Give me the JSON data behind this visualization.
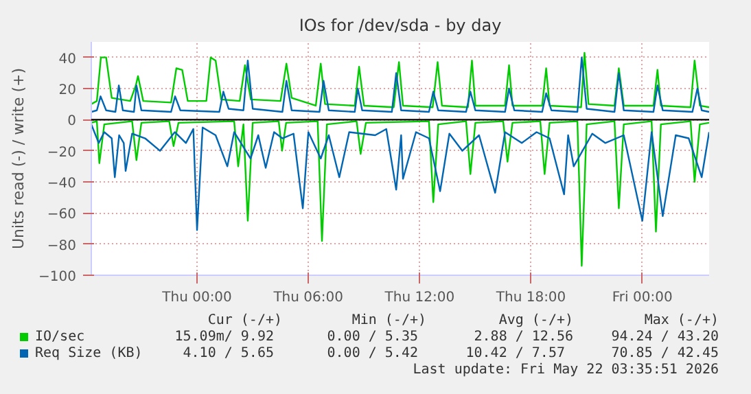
{
  "chart_data": {
    "type": "line",
    "title": "IOs for /dev/sda - by day",
    "ylabel": "Units read (-) / write (+)",
    "xlim": [
      "2026-05-20T18:18",
      "2026-05-22T03:36"
    ],
    "xticks": [
      {
        "value": "2026-05-21T00:00",
        "label": "Thu 00:00"
      },
      {
        "value": "2026-05-21T06:00",
        "label": "Thu 06:00"
      },
      {
        "value": "2026-05-21T12:00",
        "label": "Thu 12:00"
      },
      {
        "value": "2026-05-21T18:00",
        "label": "Thu 18:00"
      },
      {
        "value": "2026-05-22T00:00",
        "label": "Fri 00:00"
      }
    ],
    "ylim": [
      -100,
      50
    ],
    "yticks": [
      -100,
      -80,
      -60,
      -40,
      -20,
      0,
      20,
      40
    ],
    "grid": true,
    "legend": "bottom",
    "marker": "none",
    "line_style": "solid",
    "ref_lines": [
      {
        "axis": "y",
        "value": 0,
        "color": "#000000"
      }
    ],
    "series": [
      {
        "name": "IO/sec",
        "color": "#00cc00",
        "x": [
          "2026-05-20T18:18",
          "2026-05-20T18:36",
          "2026-05-20T18:49",
          "2026-05-20T19:06",
          "2026-05-20T19:24",
          "2026-05-20T20:24",
          "2026-05-20T20:42",
          "2026-05-20T20:49",
          "2026-05-20T21:06",
          "2026-05-20T22:36",
          "2026-05-20T22:53",
          "2026-05-20T23:12",
          "2026-05-20T23:30",
          "2026-05-21T00:30",
          "2026-05-21T00:44",
          "2026-05-21T01:00",
          "2026-05-21T01:18",
          "2026-05-21T02:18",
          "2026-05-21T02:35",
          "2026-05-21T02:54",
          "2026-05-21T04:30",
          "2026-05-21T04:49",
          "2026-05-21T05:06",
          "2026-05-21T06:24",
          "2026-05-21T06:40",
          "2026-05-21T06:54",
          "2026-05-21T08:30",
          "2026-05-21T08:44",
          "2026-05-21T09:00",
          "2026-05-21T10:36",
          "2026-05-21T10:53",
          "2026-05-21T11:06",
          "2026-05-21T12:42",
          "2026-05-21T12:58",
          "2026-05-21T13:12",
          "2026-05-21T14:36",
          "2026-05-21T14:49",
          "2026-05-21T15:00",
          "2026-05-21T16:36",
          "2026-05-21T16:49",
          "2026-05-21T17:00",
          "2026-05-21T18:36",
          "2026-05-21T18:49",
          "2026-05-21T19:00",
          "2026-05-21T20:42",
          "2026-05-21T20:53",
          "2026-05-21T21:06",
          "2026-05-21T22:30",
          "2026-05-21T22:44",
          "2026-05-21T23:00",
          "2026-05-22T00:36",
          "2026-05-22T00:49",
          "2026-05-22T01:00",
          "2026-05-22T02:36",
          "2026-05-22T02:49",
          "2026-05-22T03:06",
          "2026-05-22T03:36"
        ],
        "values": [
          10,
          12,
          40,
          40,
          14,
          12,
          22,
          28,
          12,
          11,
          33,
          32,
          12,
          12,
          40,
          38,
          13,
          12,
          35,
          13,
          12,
          36,
          14,
          9,
          36,
          10,
          9,
          34,
          9,
          8,
          37,
          9,
          8,
          37,
          9,
          8,
          38,
          9,
          9,
          35,
          9,
          9,
          33,
          9,
          8,
          43,
          10,
          9,
          33,
          9,
          9,
          32,
          9,
          8,
          38,
          9,
          8
        ]
      },
      {
        "name": null,
        "color": "#00cc00",
        "x": [
          "2026-05-20T18:18",
          "2026-05-20T18:36",
          "2026-05-20T18:44",
          "2026-05-20T19:00",
          "2026-05-20T20:30",
          "2026-05-20T20:44",
          "2026-05-20T21:00",
          "2026-05-20T22:30",
          "2026-05-20T22:44",
          "2026-05-20T23:00",
          "2026-05-21T02:00",
          "2026-05-21T02:13",
          "2026-05-21T02:30",
          "2026-05-21T02:44",
          "2026-05-21T03:00",
          "2026-05-21T04:24",
          "2026-05-21T04:35",
          "2026-05-21T04:48",
          "2026-05-21T06:30",
          "2026-05-21T06:44",
          "2026-05-21T07:00",
          "2026-05-21T08:36",
          "2026-05-21T08:49",
          "2026-05-21T09:06",
          "2026-05-21T12:30",
          "2026-05-21T12:44",
          "2026-05-21T13:00",
          "2026-05-21T14:30",
          "2026-05-21T14:44",
          "2026-05-21T15:00",
          "2026-05-21T16:30",
          "2026-05-21T16:44",
          "2026-05-21T17:00",
          "2026-05-21T18:30",
          "2026-05-21T18:44",
          "2026-05-21T19:00",
          "2026-05-21T20:30",
          "2026-05-21T20:44",
          "2026-05-21T21:00",
          "2026-05-21T22:30",
          "2026-05-21T22:44",
          "2026-05-21T23:00",
          "2026-05-22T00:30",
          "2026-05-22T00:44",
          "2026-05-22T01:00",
          "2026-05-22T02:36",
          "2026-05-22T02:49",
          "2026-05-22T03:06",
          "2026-05-22T03:36"
        ],
        "values": [
          -2,
          -1,
          -28,
          -3,
          -1,
          -26,
          -2,
          -1,
          -17,
          -2,
          -1,
          -30,
          -3,
          -65,
          -2,
          -1,
          -20,
          -2,
          -1,
          -78,
          -3,
          -1,
          -22,
          -2,
          -1,
          -53,
          -3,
          -1,
          -35,
          -2,
          -1,
          -27,
          -2,
          -1,
          -35,
          -2,
          -1,
          -94,
          -3,
          -1,
          -57,
          -3,
          -1,
          -72,
          -3,
          -1,
          -40,
          -3,
          -2
        ]
      },
      {
        "name": "Req Size (KB)",
        "color": "#0066b3",
        "x": [
          "2026-05-20T18:18",
          "2026-05-20T18:36",
          "2026-05-20T18:48",
          "2026-05-20T19:06",
          "2026-05-20T19:36",
          "2026-05-20T19:47",
          "2026-05-20T20:00",
          "2026-05-20T20:36",
          "2026-05-20T20:44",
          "2026-05-20T21:00",
          "2026-05-20T22:36",
          "2026-05-20T22:49",
          "2026-05-20T23:06",
          "2026-05-21T01:12",
          "2026-05-21T01:25",
          "2026-05-21T01:42",
          "2026-05-21T02:30",
          "2026-05-21T02:44",
          "2026-05-21T03:00",
          "2026-05-21T04:36",
          "2026-05-21T04:49",
          "2026-05-21T05:06",
          "2026-05-21T06:36",
          "2026-05-21T06:49",
          "2026-05-21T07:06",
          "2026-05-21T08:30",
          "2026-05-21T08:40",
          "2026-05-21T08:54",
          "2026-05-21T10:30",
          "2026-05-21T10:44",
          "2026-05-21T11:00",
          "2026-05-21T12:30",
          "2026-05-21T12:44",
          "2026-05-21T13:00",
          "2026-05-21T14:30",
          "2026-05-21T14:44",
          "2026-05-21T15:00",
          "2026-05-21T16:36",
          "2026-05-21T16:49",
          "2026-05-21T17:06",
          "2026-05-21T18:36",
          "2026-05-21T18:49",
          "2026-05-21T19:06",
          "2026-05-21T20:30",
          "2026-05-21T20:44",
          "2026-05-21T21:00",
          "2026-05-21T22:30",
          "2026-05-21T22:44",
          "2026-05-21T23:00",
          "2026-05-22T00:36",
          "2026-05-22T00:49",
          "2026-05-22T01:06",
          "2026-05-22T02:42",
          "2026-05-22T02:58",
          "2026-05-22T03:12",
          "2026-05-22T03:36"
        ],
        "values": [
          5,
          6,
          15,
          6,
          5,
          22,
          6,
          5,
          22,
          6,
          5,
          15,
          6,
          5,
          18,
          7,
          6,
          38,
          7,
          5,
          25,
          6,
          5,
          25,
          6,
          5,
          20,
          6,
          5,
          30,
          6,
          5,
          18,
          6,
          5,
          18,
          6,
          5,
          20,
          6,
          5,
          17,
          6,
          5,
          40,
          7,
          5,
          30,
          6,
          5,
          22,
          6,
          5,
          20,
          6,
          5
        ]
      },
      {
        "name": null,
        "color": "#0066b3",
        "x": [
          "2026-05-20T18:18",
          "2026-05-20T18:42",
          "2026-05-20T19:00",
          "2026-05-20T19:24",
          "2026-05-20T19:34",
          "2026-05-20T19:48",
          "2026-05-20T20:03",
          "2026-05-20T20:09",
          "2026-05-20T20:30",
          "2026-05-20T21:12",
          "2026-05-20T22:00",
          "2026-05-20T22:48",
          "2026-05-20T23:24",
          "2026-05-20T23:48",
          "2026-05-21T00:00",
          "2026-05-21T00:18",
          "2026-05-21T01:00",
          "2026-05-21T01:38",
          "2026-05-21T02:00",
          "2026-05-21T02:53",
          "2026-05-21T03:18",
          "2026-05-21T03:42",
          "2026-05-21T04:09",
          "2026-05-21T04:36",
          "2026-05-21T05:12",
          "2026-05-21T05:42",
          "2026-05-21T06:00",
          "2026-05-21T06:40",
          "2026-05-21T07:06",
          "2026-05-21T07:40",
          "2026-05-21T08:12",
          "2026-05-21T09:36",
          "2026-05-21T10:12",
          "2026-05-21T10:44",
          "2026-05-21T11:00",
          "2026-05-21T11:06",
          "2026-05-21T11:48",
          "2026-05-21T12:30",
          "2026-05-21T13:06",
          "2026-05-21T13:36",
          "2026-05-21T14:18",
          "2026-05-21T15:12",
          "2026-05-21T16:04",
          "2026-05-21T16:36",
          "2026-05-21T17:30",
          "2026-05-21T18:18",
          "2026-05-21T19:00",
          "2026-05-21T19:47",
          "2026-05-21T20:00",
          "2026-05-21T20:18",
          "2026-05-21T21:18",
          "2026-05-21T22:00",
          "2026-05-21T23:00",
          "2026-05-22T00:00",
          "2026-05-22T00:30",
          "2026-05-22T01:06",
          "2026-05-22T01:48",
          "2026-05-22T02:30",
          "2026-05-22T03:12",
          "2026-05-22T03:36"
        ],
        "values": [
          -3,
          -15,
          -8,
          -12,
          -37,
          -10,
          -15,
          -33,
          -9,
          -12,
          -20,
          -8,
          -15,
          -6,
          -71,
          -5,
          -10,
          -30,
          -8,
          -25,
          -10,
          -31,
          -8,
          -12,
          -9,
          -57,
          -8,
          -25,
          -10,
          -37,
          -8,
          -10,
          -6,
          -45,
          -10,
          -38,
          -8,
          -12,
          -46,
          -9,
          -20,
          -10,
          -47,
          -8,
          -15,
          -8,
          -12,
          -48,
          -10,
          -30,
          -9,
          -15,
          -10,
          -65,
          -8,
          -62,
          -10,
          -12,
          -37,
          -8
        ]
      }
    ],
    "annotations": [
      "Cur (-/+)",
      "Min (-/+)",
      "Avg (-/+)",
      "Max (-/+)",
      "15.09m/  9.92",
      "0.00 /  5.35",
      "2.88 / 12.56",
      "94.24 / 43.20",
      "4.10 /  5.65",
      "0.00 /  5.42",
      "10.42 /  7.57",
      "70.85 / 42.45",
      "Last update: Fri May 22 03:35:51 2026"
    ]
  }
}
